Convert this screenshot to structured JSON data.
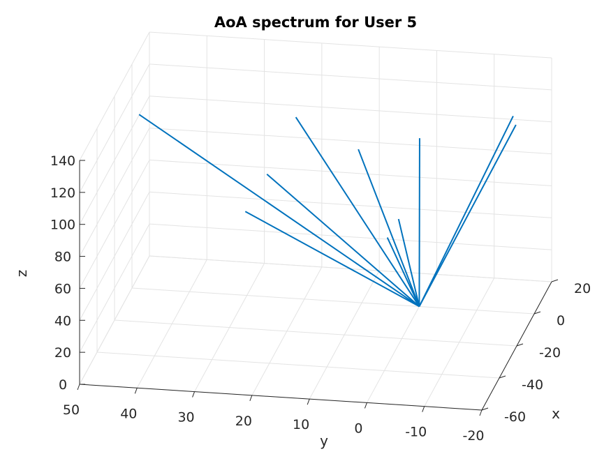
{
  "chart_data": {
    "type": "line",
    "view": "3d",
    "title": "AoA spectrum for User 5",
    "xlabel": "x",
    "ylabel": "y",
    "zlabel": "z",
    "xlim": [
      -60,
      20
    ],
    "ylim": [
      -20,
      50
    ],
    "zlim": [
      0,
      140
    ],
    "xticks": [
      "-60",
      "-40",
      "-20",
      "0",
      "20"
    ],
    "yticks": [
      "50",
      "40",
      "30",
      "20",
      "10",
      "0",
      "-10",
      "-20"
    ],
    "zticks": [
      "0",
      "20",
      "40",
      "60",
      "80",
      "100",
      "120",
      "140"
    ],
    "grid": true,
    "line_color": "#0072BD",
    "origin": [
      0,
      0,
      0
    ],
    "series": [
      {
        "values": [
          [
            -5,
            48,
            114
          ]
        ]
      },
      {
        "values": [
          [
            10,
            23,
            103
          ]
        ]
      },
      {
        "values": [
          [
            -10,
            25,
            87
          ]
        ]
      },
      {
        "values": [
          [
            -15,
            28,
            68
          ]
        ]
      },
      {
        "values": [
          [
            -4,
            10,
            100
          ]
        ]
      },
      {
        "values": [
          [
            7,
            1,
            98
          ]
        ]
      },
      {
        "values": [
          [
            -4,
            3,
            58
          ]
        ]
      },
      {
        "values": [
          [
            -30,
            1,
            73
          ]
        ]
      },
      {
        "values": [
          [
            22,
            -13,
            100
          ]
        ]
      },
      {
        "values": [
          [
            12,
            -15,
            105
          ]
        ]
      }
    ]
  }
}
